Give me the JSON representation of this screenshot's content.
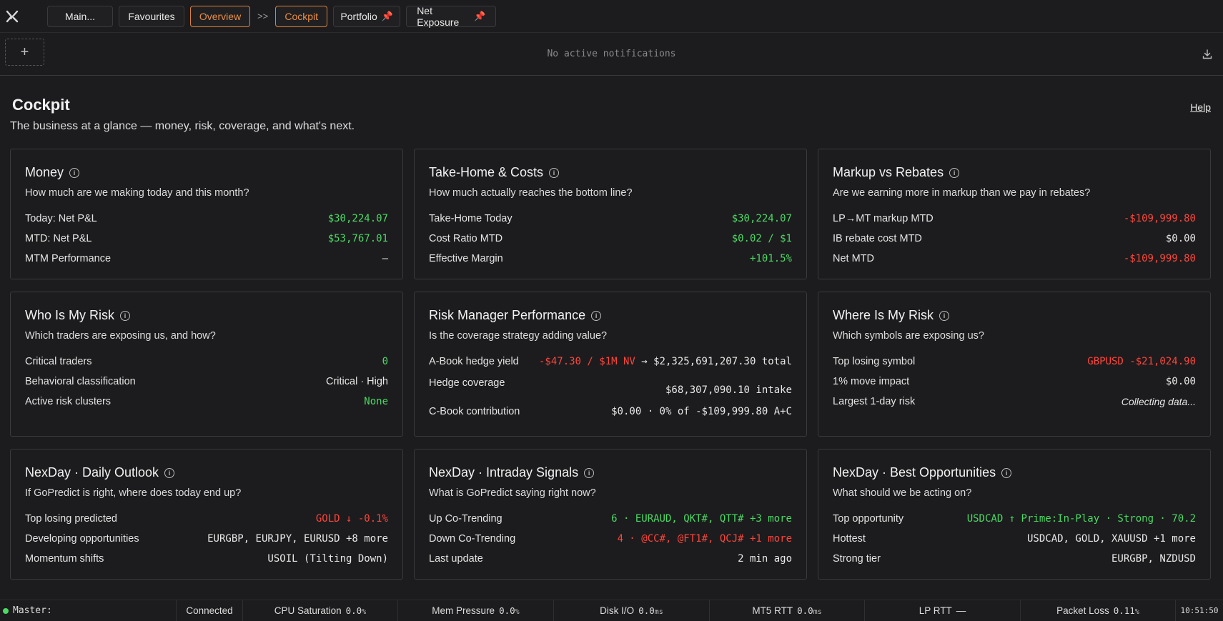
{
  "topbar": {
    "tabs": [
      {
        "label": "Main...",
        "active": false,
        "pinned": false
      },
      {
        "label": "Favourites",
        "active": false,
        "pinned": false
      },
      {
        "label": "Overview",
        "active": true,
        "pinned": false
      },
      {
        "label": "Cockpit",
        "active": true,
        "pinned": false
      },
      {
        "label": "Portfolio",
        "active": false,
        "pinned": true
      },
      {
        "label": "Net Exposure",
        "active": false,
        "pinned": true
      }
    ],
    "separator": ">>"
  },
  "notifications": {
    "add_label": "+",
    "text": "No active notifications"
  },
  "page": {
    "title": "Cockpit",
    "subtitle": "The business at a glance — money, risk, coverage, and what's next.",
    "help": "Help"
  },
  "cards": {
    "money": {
      "title": "Money",
      "question": "How much are we making today and this month?",
      "rows": [
        {
          "label": "Today: Net P&L",
          "value": "$30,224.07"
        },
        {
          "label": "MTD: Net P&L",
          "value": "$53,767.01"
        },
        {
          "label": "MTM Performance",
          "value": "—"
        }
      ]
    },
    "takehome": {
      "title": "Take-Home & Costs",
      "question": "How much actually reaches the bottom line?",
      "rows": [
        {
          "label": "Take-Home Today",
          "value": "$30,224.07"
        },
        {
          "label": "Cost Ratio MTD",
          "value": "$0.02 / $1"
        },
        {
          "label": "Effective Margin",
          "value": "+101.5%"
        }
      ]
    },
    "markup": {
      "title": "Markup vs Rebates",
      "question": "Are we earning more in markup than we pay in rebates?",
      "rows": [
        {
          "label": "LP→MT markup MTD",
          "value": "-$109,999.80"
        },
        {
          "label": "IB rebate cost MTD",
          "value": "$0.00"
        },
        {
          "label": "Net MTD",
          "value": "-$109,999.80"
        }
      ]
    },
    "whorisk": {
      "title": "Who Is My Risk",
      "question": "Which traders are exposing us, and how?",
      "rows": [
        {
          "label": "Critical traders",
          "value": "0"
        },
        {
          "label": "Behavioral classification",
          "value": "Critical · High"
        },
        {
          "label": "Active risk clusters",
          "value": "None"
        }
      ]
    },
    "rmperf": {
      "title": "Risk Manager Performance",
      "question": "Is the coverage strategy adding value?",
      "rows": [
        {
          "label": "A-Book hedge yield",
          "value_red": "-$47.30 / $1M NV",
          "value_rest": " → $2,325,691,207.30 total"
        },
        {
          "label": "Hedge coverage",
          "value": "$68,307,090.10 intake"
        },
        {
          "label": "C-Book contribution",
          "value": "$0.00 · 0% of -$109,999.80 A+C"
        }
      ]
    },
    "whererisk": {
      "title": "Where Is My Risk",
      "question": "Which symbols are exposing us?",
      "rows": [
        {
          "label": "Top losing symbol",
          "value": "GBPUSD -$21,024.90"
        },
        {
          "label": "1% move impact",
          "value": "$0.00"
        },
        {
          "label": "Largest 1-day risk",
          "value": "Collecting data..."
        }
      ]
    },
    "outlook": {
      "title": "NexDay · Daily Outlook",
      "question": "If GoPredict is right, where does today end up?",
      "rows": [
        {
          "label": "Top losing predicted",
          "value": "GOLD ↓ -0.1%"
        },
        {
          "label": "Developing opportunities",
          "value": "EURGBP, EURJPY, EURUSD +8 more"
        },
        {
          "label": "Momentum shifts",
          "value": "USOIL (Tilting Down)"
        }
      ]
    },
    "signals": {
      "title": "NexDay · Intraday Signals",
      "question": "What is GoPredict saying right now?",
      "rows": [
        {
          "label": "Up Co-Trending",
          "value": "6 · EURAUD, QKT#, QTT# +3 more"
        },
        {
          "label": "Down Co-Trending",
          "value": "4 · @CC#, @FT1#, QCJ# +1 more"
        },
        {
          "label": "Last update",
          "value": "2 min ago"
        }
      ]
    },
    "opps": {
      "title": "NexDay · Best Opportunities",
      "question": "What should we be acting on?",
      "rows": [
        {
          "label": "Top opportunity",
          "value": "USDCAD ↑ Prime:In-Play · Strong · 70.2"
        },
        {
          "label": "Hottest",
          "value": "USDCAD, GOLD, XAUUSD +1 more"
        },
        {
          "label": "Strong tier",
          "value": "EURGBP, NZDUSD"
        }
      ]
    }
  },
  "statusbar": {
    "master": "Master:",
    "connection": "Connected",
    "cpu_label": "CPU Saturation",
    "cpu_value": "0.0",
    "cpu_unit": "%",
    "mem_label": "Mem Pressure",
    "mem_value": "0.0",
    "mem_unit": "%",
    "disk_label": "Disk I/O",
    "disk_value": "0.0",
    "disk_unit": "ms",
    "mt5_label": "MT5 RTT",
    "mt5_value": "0.0",
    "mt5_unit": "ms",
    "lp_label": "LP RTT",
    "lp_value": "—",
    "loss_label": "Packet Loss",
    "loss_value": "0.11",
    "loss_unit": "%",
    "clock": "10:51:50"
  },
  "colors": {
    "accent": "#e88d46",
    "positive": "#4cd964",
    "negative": "#ff453a",
    "background": "#1c1c1e"
  }
}
